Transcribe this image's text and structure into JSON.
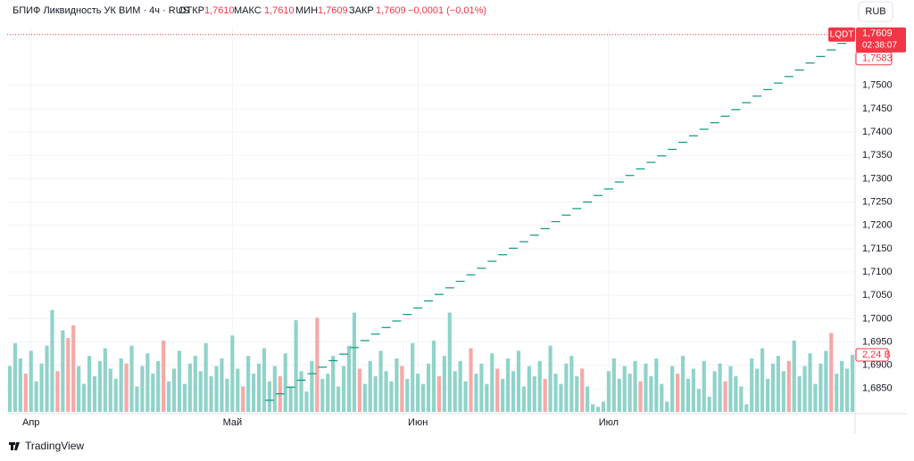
{
  "header": {
    "symbol": "БПИФ Ликвидность УК ВИМ · 4ч · RUS",
    "open_label": "ОТКР",
    "open": "1,7610",
    "high_label": "МАКС",
    "high": "1,7610",
    "low_label": "МИН",
    "low": "1,7609",
    "close_label": "ЗАКР",
    "close": "1,7609",
    "change": "−0,0001 (−0,01%)",
    "currency": "RUB",
    "logo": "TradingView"
  },
  "chart_data": {
    "type": "candlestick",
    "ylim": [
      1.68,
      1.762
    ],
    "yticks": [
      {
        "value": 1.685,
        "label": "1,6850"
      },
      {
        "value": 1.69,
        "label": "1,6900"
      },
      {
        "value": 1.695,
        "label": "1,6950"
      },
      {
        "value": 1.7,
        "label": "1,7000"
      },
      {
        "value": 1.705,
        "label": "1,7050"
      },
      {
        "value": 1.71,
        "label": "1,7100"
      },
      {
        "value": 1.715,
        "label": "1,7150"
      },
      {
        "value": 1.72,
        "label": "1,7200"
      },
      {
        "value": 1.725,
        "label": "1,7250"
      },
      {
        "value": 1.73,
        "label": "1,7300"
      },
      {
        "value": 1.735,
        "label": "1,7350"
      },
      {
        "value": 1.74,
        "label": "1,7400"
      },
      {
        "value": 1.745,
        "label": "1,7450"
      },
      {
        "value": 1.75,
        "label": "1,7500"
      }
    ],
    "grid": true,
    "bar_count": 160,
    "x_labels": [
      {
        "index": 4,
        "label": "Апр"
      },
      {
        "index": 42,
        "label": "Май"
      },
      {
        "index": 77,
        "label": "Июн"
      },
      {
        "index": 113,
        "label": "Июл"
      }
    ],
    "price": {
      "color": "#089981",
      "x": [
        49,
        51,
        53,
        55,
        57,
        59,
        61,
        63,
        65,
        67,
        69,
        71,
        73,
        75,
        77,
        79,
        81,
        83,
        85,
        87,
        89,
        91,
        93,
        95,
        97,
        99,
        101,
        103,
        105,
        107,
        109,
        111,
        113,
        115,
        117,
        119,
        121,
        123,
        125,
        127,
        129,
        131,
        133,
        135,
        137,
        139,
        141,
        143,
        145,
        147,
        149,
        151,
        153,
        155,
        157
      ],
      "values": [
        1.6825,
        1.6839,
        1.6853,
        1.6868,
        1.6882,
        1.6896,
        1.691,
        1.6924,
        1.6938,
        1.6953,
        1.6967,
        1.6981,
        1.6995,
        1.7009,
        1.7023,
        1.7038,
        1.7052,
        1.7066,
        1.708,
        1.7094,
        1.7108,
        1.7123,
        1.7137,
        1.7151,
        1.7165,
        1.7179,
        1.7193,
        1.7208,
        1.7222,
        1.7236,
        1.725,
        1.7264,
        1.7278,
        1.7293,
        1.7307,
        1.7321,
        1.7335,
        1.7349,
        1.7363,
        1.7378,
        1.7392,
        1.7406,
        1.742,
        1.7434,
        1.7448,
        1.7463,
        1.7477,
        1.7491,
        1.7505,
        1.7519,
        1.7533,
        1.7548,
        1.7562,
        1.7576,
        1.759
      ]
    },
    "last_price": {
      "value": 1.7609,
      "label": "1,7609",
      "ticker": "LQDT",
      "countdown": "02:38:07",
      "color": "#f23645"
    },
    "prev_close": {
      "value": 1.7583,
      "label": "1,7583"
    },
    "volume": {
      "vlim": [
        0,
        4.2
      ],
      "up_color": "#8fd3c9",
      "down_color": "#f7a8a6",
      "down_bars": [
        3,
        9,
        11,
        12,
        22,
        29,
        44,
        51,
        58,
        66,
        74,
        81,
        87,
        92,
        101,
        108,
        119,
        126,
        135,
        147,
        155
      ],
      "values": [
        1.8,
        2.7,
        2.1,
        1.5,
        2.4,
        1.2,
        1.9,
        2.6,
        4.0,
        1.6,
        3.2,
        2.9,
        3.4,
        1.8,
        1.1,
        2.2,
        1.4,
        2.0,
        2.5,
        1.7,
        1.3,
        2.1,
        1.9,
        2.6,
        1.0,
        1.8,
        2.3,
        1.5,
        2.0,
        2.8,
        1.2,
        1.7,
        2.4,
        1.1,
        1.9,
        2.2,
        1.6,
        2.7,
        1.4,
        1.8,
        2.1,
        1.3,
        3.0,
        1.7,
        1.0,
        2.2,
        1.5,
        1.9,
        2.5,
        1.2,
        1.8,
        1.4,
        2.3,
        1.0,
        3.6,
        1.6,
        0.8,
        2.0,
        3.7,
        1.3,
        1.5,
        2.2,
        1.0,
        1.8,
        2.6,
        3.9,
        1.7,
        1.1,
        2.0,
        1.4,
        2.4,
        1.6,
        1.2,
        2.1,
        1.8,
        1.3,
        2.7,
        1.5,
        1.1,
        1.9,
        2.8,
        1.4,
        2.2,
        3.9,
        1.6,
        2.0,
        1.2,
        2.5,
        1.5,
        1.9,
        1.1,
        2.3,
        1.7,
        1.3,
        2.1,
        1.6,
        2.4,
        1.0,
        1.8,
        1.4,
        2.0,
        1.3,
        2.6,
        1.5,
        1.1,
        1.9,
        2.2,
        1.4,
        1.7,
        1.0,
        0.3,
        0.2,
        0.4,
        1.6,
        2.1,
        1.3,
        1.8,
        1.5,
        2.0,
        1.2,
        1.9,
        1.4,
        2.1,
        1.1,
        0.4,
        1.8,
        1.5,
        2.2,
        1.3,
        1.7,
        0.9,
        2.0,
        0.6,
        1.6,
        1.9,
        1.2,
        1.8,
        1.4,
        1.0,
        0.3,
        2.1,
        1.7,
        2.5,
        1.3,
        1.9,
        2.2,
        1.6,
        2.0,
        2.8,
        1.4,
        1.8,
        2.3,
        1.1,
        1.9,
        2.4,
        3.1,
        1.5,
        2.0,
        1.7,
        2.24
      ],
      "last_label": "2,24 B"
    }
  }
}
